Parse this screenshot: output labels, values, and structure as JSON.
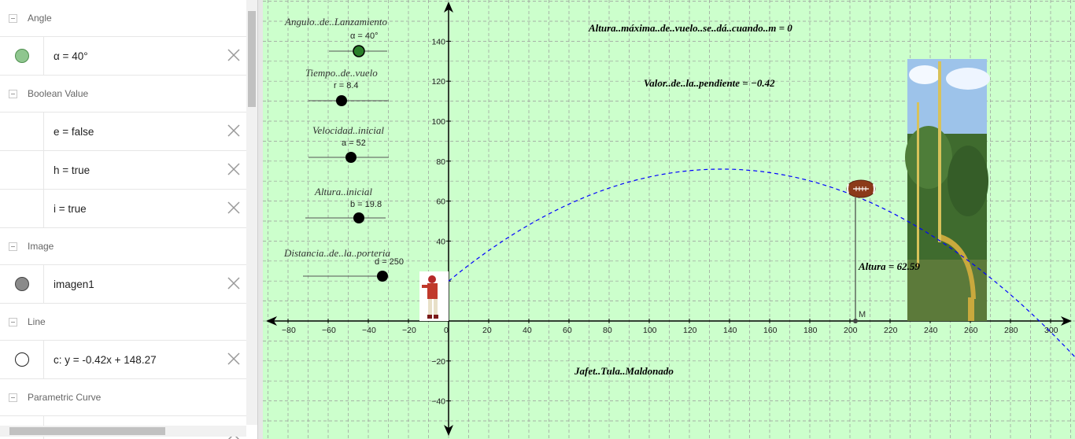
{
  "algebra": {
    "categories": {
      "angle": "Angle",
      "boolean": "Boolean Value",
      "image": "Image",
      "line": "Line",
      "parametric": "Parametric Curve"
    },
    "items": {
      "alpha": "α = 40°",
      "e": "e = false",
      "h": "h = true",
      "i": "i = true",
      "imagen1": "imagen1",
      "c": "c: y = -0.42x + 148.27"
    },
    "colors": {
      "alpha_dot": "#7fbf7f",
      "imagen1_dot": "#808080"
    }
  },
  "graph": {
    "background": "#ccffcc",
    "curve_color": "#0000ff",
    "texts": {
      "altura_max": "Altura..máxima..de..vuelo..se..dá..cuando..m = 0",
      "pendiente": "Valor..de..la..pendiente = −0.42",
      "autor": "Jafet..Tula..Maldonado",
      "altura": "Altura = 62.59",
      "point_m": "M"
    },
    "sliders": [
      {
        "caption": "Angulo..de..Lanzamiento",
        "label": "α = 40°",
        "fill": "#2a7f2a"
      },
      {
        "caption": "Tiempo..de..vuelo",
        "label": "r = 8.4",
        "fill": "#000000"
      },
      {
        "caption": "Velocidad..inicial",
        "label": "a = 52",
        "fill": "#000000"
      },
      {
        "caption": "Altura..inicial",
        "label": "b = 19.8",
        "fill": "#000000"
      },
      {
        "caption": "Distancia..de..la..porteria",
        "label": "d = 250",
        "fill": "#000000"
      }
    ],
    "x_ticks": [
      "−80",
      "−60",
      "−40",
      "−20",
      "0",
      "20",
      "40",
      "60",
      "80",
      "100",
      "120",
      "140",
      "160",
      "180",
      "200",
      "220",
      "240",
      "260",
      "280",
      "300"
    ],
    "y_ticks": [
      "140",
      "120",
      "100",
      "80",
      "60",
      "40",
      "20",
      "−20",
      "−40"
    ]
  }
}
